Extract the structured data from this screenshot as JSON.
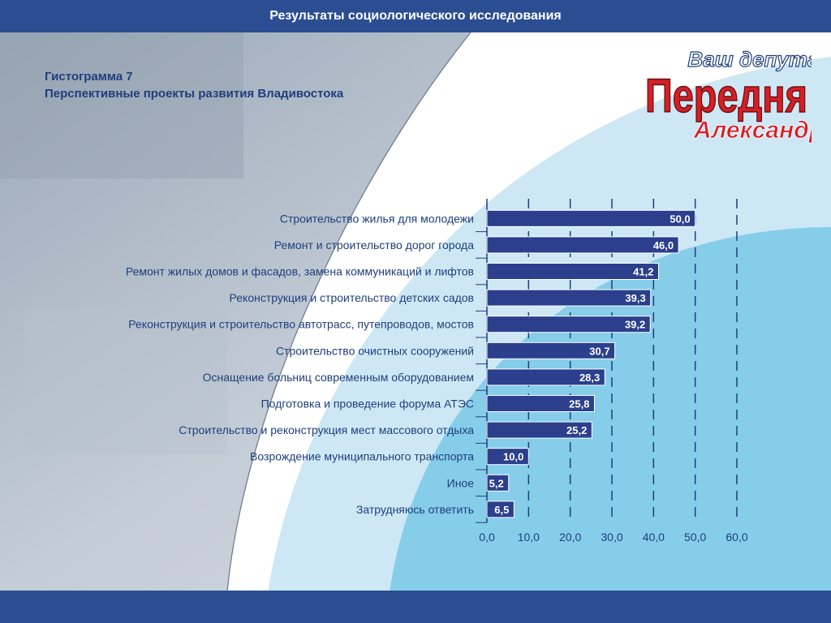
{
  "header": {
    "title": "Результаты социологического исследования"
  },
  "figure": {
    "label": "Гистограмма 7",
    "title": "Перспективные проекты развития Владивостока"
  },
  "logo": {
    "line1": "Ваш депутат",
    "line2": "Передня",
    "line3": "Александр"
  },
  "colors": {
    "bar": "#2b3f8c",
    "header": "#2b4e93",
    "title": "#1f3e7d",
    "logo_red": "#d41f26"
  },
  "chart_data": {
    "type": "bar",
    "orientation": "horizontal",
    "categories": [
      "Строительство жилья для молодежи",
      "Ремонт и строительство дорог города",
      "Ремонт жилых домов и фасадов, замена коммуникаций и лифтов",
      "Реконструкция и строительство детских садов",
      "Реконструкция и строительство автотрасс, путепроводов,  мостов",
      "Строительство очистных сооружений",
      "Оснащение больниц современным оборудованием",
      "Подготовка и проведение форума АТЭС",
      "Строительство и реконструкция мест массового отдыха",
      "Возрождение муниципального транспорта",
      "Иное",
      "Затрудняюсь ответить"
    ],
    "values": [
      50.0,
      46.0,
      41.2,
      39.3,
      39.2,
      30.7,
      28.3,
      25.8,
      25.2,
      10.0,
      5.2,
      6.5
    ],
    "value_labels": [
      "50,0",
      "46,0",
      "41,2",
      "39,3",
      "39,2",
      "30,7",
      "28,3",
      "25,8",
      "25,2",
      "10,0",
      "5,2",
      "6,5"
    ],
    "xlim": [
      0,
      60
    ],
    "xticks": [
      "0,0",
      "10,0",
      "20,0",
      "30,0",
      "40,0",
      "50,0",
      "60,0"
    ],
    "grid": "dashed vertical",
    "legend": "none"
  }
}
